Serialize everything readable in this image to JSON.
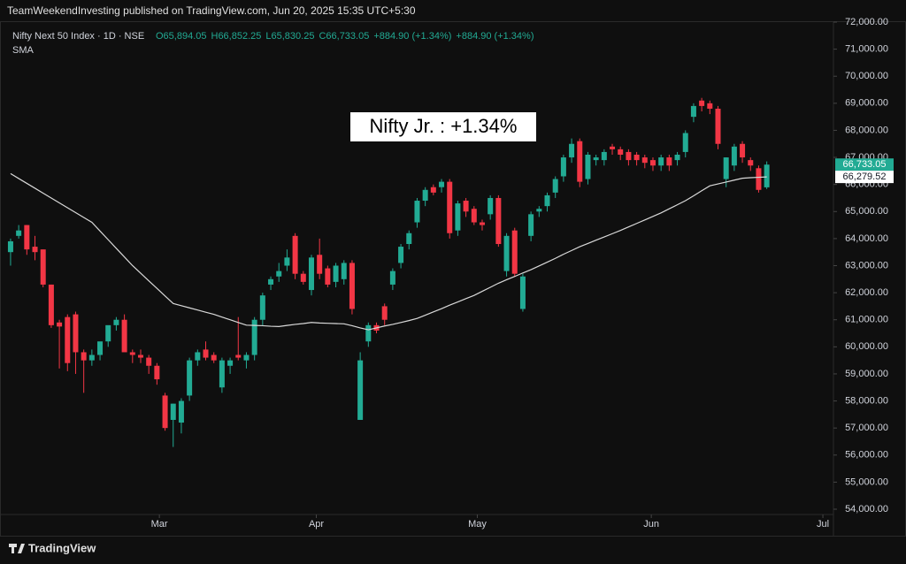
{
  "header": {
    "published": "TeamWeekendInvesting published on TradingView.com, Jun 20, 2025 15:35 UTC+5:30"
  },
  "footer": {
    "brand": "TradingView"
  },
  "chart_data": {
    "type": "candlestick",
    "symbol": "Nifty Next 50 Index · 1D · NSE",
    "ohlc_legend": [
      "O65,894.05",
      "H66,852.25",
      "L65,830.25",
      "C66,733.05",
      "+884.90 (+1.34%)",
      "+884.90 (+1.34%)"
    ],
    "indicator": "SMA",
    "annotation": "Nifty Jr. : +1.34%",
    "up_color": "#22ab94",
    "down_color": "#f23645",
    "sma_color": "#d9d9d9",
    "grid": false,
    "xlim": [
      -1.3,
      101.2
    ],
    "xticks": [
      {
        "value": 18.3,
        "label": "Mar"
      },
      {
        "value": 37.6,
        "label": "Apr"
      },
      {
        "value": 57.4,
        "label": "May"
      },
      {
        "value": 78.8,
        "label": "Jun"
      },
      {
        "value": 99.9,
        "label": "Jul"
      }
    ],
    "ylim": [
      54000,
      72000
    ],
    "yticks": [
      {
        "value": 54000,
        "label": "54,000.00"
      },
      {
        "value": 55000,
        "label": "55,000.00"
      },
      {
        "value": 56000,
        "label": "56,000.00"
      },
      {
        "value": 57000,
        "label": "57,000.00"
      },
      {
        "value": 58000,
        "label": "58,000.00"
      },
      {
        "value": 59000,
        "label": "59,000.00"
      },
      {
        "value": 60000,
        "label": "60,000.00"
      },
      {
        "value": 61000,
        "label": "61,000.00"
      },
      {
        "value": 62000,
        "label": "62,000.00"
      },
      {
        "value": 63000,
        "label": "63,000.00"
      },
      {
        "value": 64000,
        "label": "64,000.00"
      },
      {
        "value": 65000,
        "label": "65,000.00"
      },
      {
        "value": 66000,
        "label": "66,000.00"
      },
      {
        "value": 67000,
        "label": "67,000.00"
      },
      {
        "value": 68000,
        "label": "68,000.00"
      },
      {
        "value": 69000,
        "label": "69,000.00"
      },
      {
        "value": 70000,
        "label": "70,000.00"
      },
      {
        "value": 71000,
        "label": "71,000.00"
      },
      {
        "value": 72000,
        "label": "72,000.00"
      }
    ],
    "candles": {
      "open": [
        63500,
        64100,
        64500,
        63700,
        63600,
        62300,
        60900,
        61100,
        61200,
        59800,
        59500,
        59700,
        60200,
        60800,
        61000,
        59800,
        59700,
        59600,
        59300,
        58200,
        57300,
        57200,
        58200,
        59500,
        59900,
        59700,
        58500,
        59300,
        59700,
        59500,
        59700,
        61000,
        62300,
        62600,
        63000,
        64100,
        62700,
        62100,
        63400,
        62900,
        62400,
        62500,
        63100,
        57300,
        60200,
        60800,
        61500,
        62300,
        63100,
        63800,
        64600,
        65400,
        65900,
        65900,
        66100,
        64300,
        65400,
        65100,
        64600,
        64900,
        65500,
        62800,
        64300,
        61400,
        64100,
        65000,
        65200,
        65700,
        66300,
        67000,
        67600,
        66200,
        66900,
        66900,
        67400,
        67300,
        67200,
        67100,
        67000,
        66900,
        66700,
        67000,
        66900,
        67200,
        68500,
        69100,
        69000,
        68800,
        66200,
        66700,
        67500,
        66900,
        66600,
        65894.05
      ],
      "high": [
        64000,
        64500,
        64500,
        64100,
        63600,
        62300,
        61000,
        61200,
        61300,
        59900,
        59900,
        60100,
        60700,
        61100,
        61200,
        59900,
        59900,
        59700,
        59400,
        58300,
        57900,
        58100,
        59600,
        59900,
        60200,
        59800,
        59600,
        59600,
        61100,
        59800,
        61100,
        62000,
        62600,
        63100,
        63600,
        64200,
        62800,
        63400,
        64000,
        63000,
        63100,
        63200,
        63200,
        59800,
        60900,
        60900,
        61600,
        62900,
        63800,
        64300,
        65500,
        65900,
        66000,
        66200,
        66200,
        65400,
        65500,
        65200,
        64700,
        65600,
        65600,
        64200,
        64400,
        62700,
        65000,
        65200,
        65700,
        66300,
        67100,
        67700,
        67700,
        67200,
        67100,
        67300,
        67500,
        67400,
        67300,
        67200,
        67100,
        67000,
        67100,
        67100,
        67200,
        68000,
        69000,
        69200,
        69100,
        68900,
        67000,
        67500,
        67600,
        67000,
        66700,
        66852.25
      ],
      "low": [
        63000,
        64000,
        63400,
        63200,
        62200,
        60700,
        59200,
        59100,
        59000,
        58300,
        59300,
        59500,
        60000,
        60600,
        60800,
        59400,
        59400,
        59000,
        58600,
        56900,
        56300,
        56800,
        58000,
        59300,
        59500,
        59400,
        58300,
        59000,
        59500,
        59200,
        59500,
        60800,
        62100,
        62400,
        62800,
        62500,
        62300,
        61900,
        62500,
        62200,
        62200,
        62300,
        61200,
        57300,
        60000,
        60500,
        60800,
        62100,
        62900,
        63600,
        64400,
        65200,
        65600,
        65700,
        64000,
        64100,
        64800,
        64500,
        64300,
        64700,
        63700,
        62600,
        62600,
        61300,
        63900,
        64800,
        65000,
        65500,
        66100,
        66800,
        65900,
        66000,
        66700,
        66700,
        67100,
        66900,
        66700,
        66700,
        66600,
        66500,
        66500,
        66500,
        66700,
        67000,
        68300,
        68700,
        68600,
        67300,
        65900,
        66500,
        66800,
        66500,
        65700,
        65830.25
      ],
      "close": [
        63900,
        64300,
        63600,
        63500,
        62300,
        60800,
        60750,
        59400,
        59800,
        59500,
        59700,
        60200,
        60800,
        61000,
        59800,
        59700,
        59600,
        59300,
        58800,
        57000,
        57900,
        58000,
        59500,
        59800,
        59600,
        59500,
        59500,
        59500,
        59600,
        59700,
        61000,
        61900,
        62500,
        62800,
        63300,
        62700,
        62400,
        63300,
        62700,
        62300,
        63000,
        63100,
        61400,
        59500,
        60800,
        60600,
        61000,
        62800,
        63700,
        64200,
        65400,
        65800,
        65700,
        66100,
        64200,
        65300,
        65000,
        64600,
        64500,
        65500,
        63800,
        64100,
        62700,
        62600,
        64900,
        65100,
        65600,
        66200,
        67000,
        67500,
        66100,
        67100,
        67000,
        67200,
        67300,
        67100,
        66900,
        66900,
        66800,
        66700,
        67000,
        66700,
        67100,
        67900,
        68900,
        68900,
        68800,
        67500,
        67000,
        67400,
        67000,
        66700,
        65800,
        66733.05
      ],
      "last_label": "66,733.05"
    },
    "sma": {
      "values": [
        66400,
        66220,
        66040,
        65860,
        65680,
        65500,
        65320,
        65140,
        64960,
        64780,
        64600,
        64280,
        63960,
        63640,
        63320,
        63000,
        62720,
        62440,
        62160,
        61880,
        61600,
        61520,
        61440,
        61360,
        61280,
        61200,
        61100,
        61000,
        60900,
        60800,
        60790,
        60780,
        60760,
        60750,
        60790,
        60830,
        60860,
        60900,
        60880,
        60870,
        60860,
        60850,
        60780,
        60700,
        60630,
        60700,
        60770,
        60830,
        60900,
        60970,
        61050,
        61170,
        61290,
        61410,
        61540,
        61660,
        61780,
        61900,
        62050,
        62200,
        62350,
        62480,
        62600,
        62730,
        62850,
        62990,
        63130,
        63270,
        63420,
        63560,
        63700,
        63820,
        63940,
        64060,
        64180,
        64300,
        64430,
        64560,
        64690,
        64820,
        64950,
        65100,
        65250,
        65400,
        65580,
        65770,
        65950,
        66020,
        66090,
        66160,
        66230,
        66250,
        66265,
        66279.52
      ],
      "last_label": "66,279.52"
    }
  }
}
